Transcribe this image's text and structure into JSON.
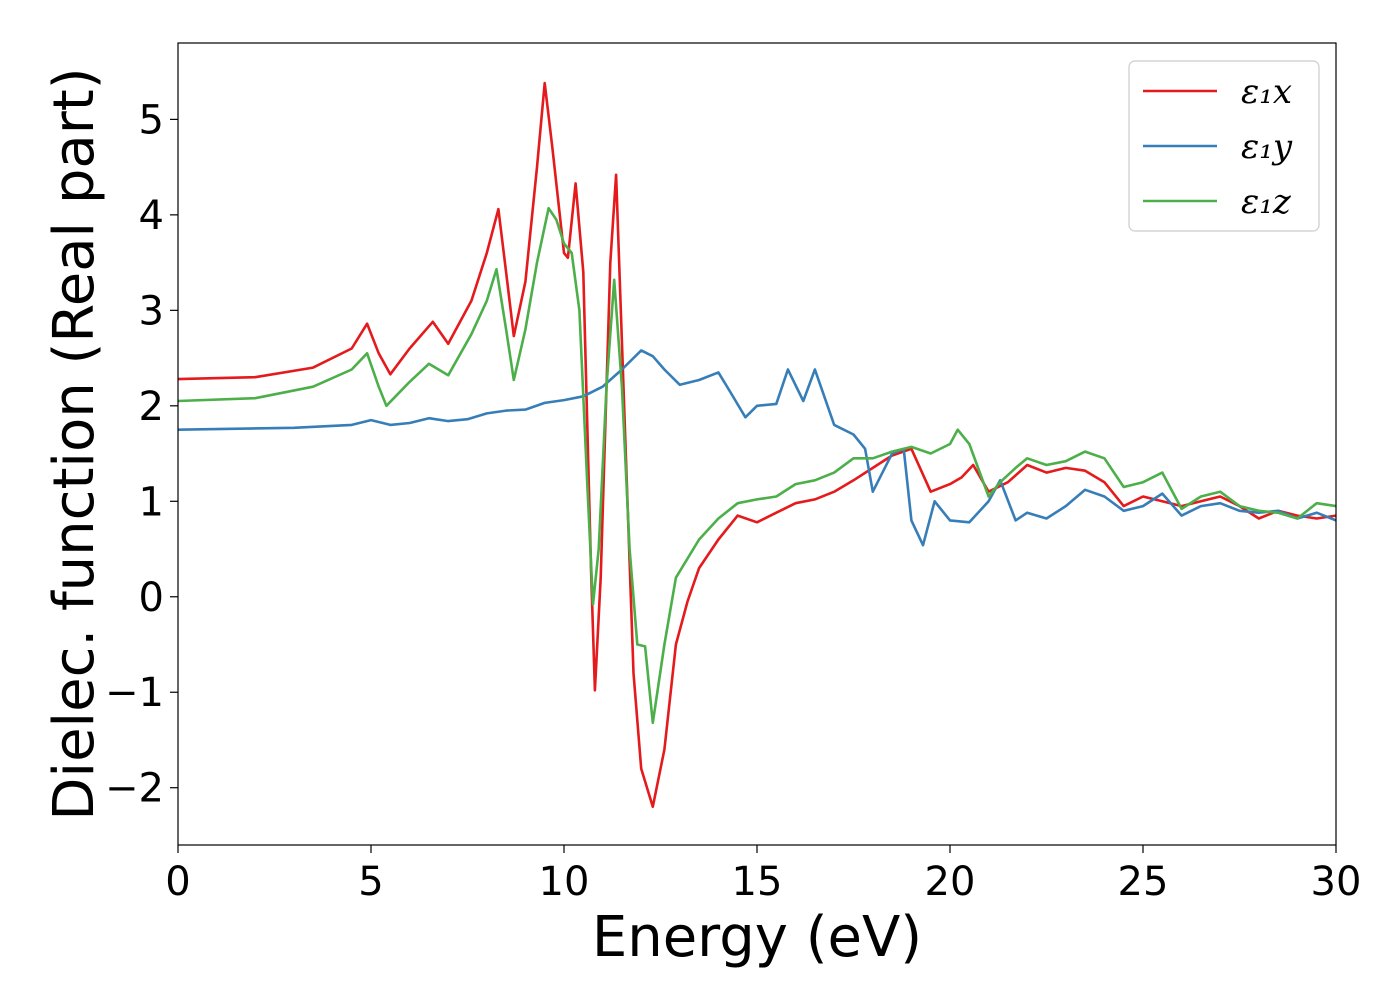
{
  "chart_data": {
    "type": "line",
    "title": "",
    "xlabel": "Energy (eV)",
    "ylabel": "Dielec. function (Real part)",
    "xlim": [
      0,
      30
    ],
    "ylim": [
      -2.6,
      5.8
    ],
    "xticks": [
      0,
      5,
      10,
      15,
      20,
      25,
      30
    ],
    "xtick_labels": [
      "0",
      "5",
      "10",
      "15",
      "20",
      "25",
      "30"
    ],
    "yticks": [
      -2,
      -1,
      0,
      1,
      2,
      3,
      4,
      5
    ],
    "ytick_labels": [
      "−2",
      "−1",
      "0",
      "1",
      "2",
      "3",
      "4",
      "5"
    ],
    "grid": false,
    "legend_position": "top-right",
    "series": [
      {
        "name": "ε₁x",
        "color": "#e41a1c",
        "points": [
          [
            0,
            2.28
          ],
          [
            2,
            2.3
          ],
          [
            3.5,
            2.4
          ],
          [
            4.5,
            2.6
          ],
          [
            4.9,
            2.86
          ],
          [
            5.2,
            2.55
          ],
          [
            5.5,
            2.33
          ],
          [
            6,
            2.6
          ],
          [
            6.6,
            2.88
          ],
          [
            7,
            2.65
          ],
          [
            7.6,
            3.1
          ],
          [
            8,
            3.6
          ],
          [
            8.3,
            4.06
          ],
          [
            8.5,
            3.4
          ],
          [
            8.7,
            2.73
          ],
          [
            9,
            3.3
          ],
          [
            9.3,
            4.5
          ],
          [
            9.5,
            5.38
          ],
          [
            9.7,
            4.7
          ],
          [
            10,
            3.6
          ],
          [
            10.1,
            3.55
          ],
          [
            10.3,
            4.33
          ],
          [
            10.5,
            3.4
          ],
          [
            10.7,
            0.3
          ],
          [
            10.8,
            -0.98
          ],
          [
            10.95,
            0.2
          ],
          [
            11.2,
            3.5
          ],
          [
            11.35,
            4.42
          ],
          [
            11.6,
            1.5
          ],
          [
            11.8,
            -0.8
          ],
          [
            12,
            -1.8
          ],
          [
            12.3,
            -2.2
          ],
          [
            12.6,
            -1.6
          ],
          [
            12.9,
            -0.5
          ],
          [
            13.2,
            -0.05
          ],
          [
            13.5,
            0.3
          ],
          [
            14,
            0.6
          ],
          [
            14.5,
            0.85
          ],
          [
            15,
            0.78
          ],
          [
            15.5,
            0.88
          ],
          [
            16,
            0.98
          ],
          [
            16.5,
            1.02
          ],
          [
            17,
            1.1
          ],
          [
            17.5,
            1.22
          ],
          [
            18,
            1.35
          ],
          [
            18.5,
            1.48
          ],
          [
            19,
            1.55
          ],
          [
            19.5,
            1.1
          ],
          [
            20,
            1.18
          ],
          [
            20.3,
            1.25
          ],
          [
            20.6,
            1.38
          ],
          [
            21,
            1.1
          ],
          [
            21.5,
            1.2
          ],
          [
            22,
            1.38
          ],
          [
            22.5,
            1.3
          ],
          [
            23,
            1.35
          ],
          [
            23.5,
            1.32
          ],
          [
            24,
            1.2
          ],
          [
            24.5,
            0.95
          ],
          [
            25,
            1.05
          ],
          [
            25.5,
            1.0
          ],
          [
            26,
            0.95
          ],
          [
            26.5,
            1.0
          ],
          [
            27,
            1.05
          ],
          [
            27.5,
            0.95
          ],
          [
            28,
            0.82
          ],
          [
            28.5,
            0.9
          ],
          [
            29,
            0.85
          ],
          [
            29.5,
            0.82
          ],
          [
            30,
            0.85
          ]
        ]
      },
      {
        "name": "ε₁y",
        "color": "#377eb8",
        "points": [
          [
            0,
            1.75
          ],
          [
            3,
            1.77
          ],
          [
            4.5,
            1.8
          ],
          [
            5,
            1.85
          ],
          [
            5.5,
            1.8
          ],
          [
            6,
            1.82
          ],
          [
            6.5,
            1.87
          ],
          [
            7,
            1.84
          ],
          [
            7.5,
            1.86
          ],
          [
            8,
            1.92
          ],
          [
            8.5,
            1.95
          ],
          [
            9,
            1.96
          ],
          [
            9.5,
            2.03
          ],
          [
            10,
            2.06
          ],
          [
            10.5,
            2.1
          ],
          [
            11,
            2.2
          ],
          [
            11.5,
            2.38
          ],
          [
            12,
            2.58
          ],
          [
            12.3,
            2.52
          ],
          [
            12.6,
            2.38
          ],
          [
            13,
            2.22
          ],
          [
            13.5,
            2.27
          ],
          [
            14,
            2.35
          ],
          [
            14.3,
            2.15
          ],
          [
            14.7,
            1.88
          ],
          [
            15,
            2.0
          ],
          [
            15.5,
            2.02
          ],
          [
            15.8,
            2.38
          ],
          [
            16.2,
            2.05
          ],
          [
            16.5,
            2.38
          ],
          [
            17,
            1.8
          ],
          [
            17.5,
            1.7
          ],
          [
            17.8,
            1.55
          ],
          [
            18,
            1.1
          ],
          [
            18.5,
            1.5
          ],
          [
            18.8,
            1.55
          ],
          [
            19,
            0.8
          ],
          [
            19.3,
            0.54
          ],
          [
            19.6,
            1.0
          ],
          [
            20,
            0.8
          ],
          [
            20.5,
            0.78
          ],
          [
            21,
            1.0
          ],
          [
            21.3,
            1.22
          ],
          [
            21.7,
            0.8
          ],
          [
            22,
            0.88
          ],
          [
            22.5,
            0.82
          ],
          [
            23,
            0.95
          ],
          [
            23.5,
            1.12
          ],
          [
            24,
            1.05
          ],
          [
            24.5,
            0.9
          ],
          [
            25,
            0.95
          ],
          [
            25.5,
            1.08
          ],
          [
            26,
            0.85
          ],
          [
            26.5,
            0.95
          ],
          [
            27,
            0.98
          ],
          [
            27.5,
            0.9
          ],
          [
            28,
            0.88
          ],
          [
            28.5,
            0.9
          ],
          [
            29,
            0.82
          ],
          [
            29.5,
            0.88
          ],
          [
            30,
            0.8
          ]
        ]
      },
      {
        "name": "ε₁z",
        "color": "#4daf4a",
        "points": [
          [
            0,
            2.05
          ],
          [
            2,
            2.08
          ],
          [
            3.5,
            2.2
          ],
          [
            4.5,
            2.38
          ],
          [
            4.9,
            2.55
          ],
          [
            5.2,
            2.2
          ],
          [
            5.4,
            2.0
          ],
          [
            6,
            2.25
          ],
          [
            6.5,
            2.44
          ],
          [
            7,
            2.32
          ],
          [
            7.6,
            2.75
          ],
          [
            8,
            3.1
          ],
          [
            8.25,
            3.43
          ],
          [
            8.5,
            2.8
          ],
          [
            8.7,
            2.27
          ],
          [
            9,
            2.8
          ],
          [
            9.3,
            3.5
          ],
          [
            9.6,
            4.07
          ],
          [
            9.8,
            3.95
          ],
          [
            10,
            3.7
          ],
          [
            10.2,
            3.6
          ],
          [
            10.4,
            3.0
          ],
          [
            10.6,
            1.2
          ],
          [
            10.75,
            -0.08
          ],
          [
            10.9,
            0.5
          ],
          [
            11.1,
            2.2
          ],
          [
            11.3,
            3.32
          ],
          [
            11.5,
            2.2
          ],
          [
            11.7,
            0.5
          ],
          [
            11.9,
            -0.5
          ],
          [
            12.1,
            -0.52
          ],
          [
            12.3,
            -1.32
          ],
          [
            12.6,
            -0.5
          ],
          [
            12.9,
            0.2
          ],
          [
            13.5,
            0.6
          ],
          [
            14,
            0.82
          ],
          [
            14.5,
            0.98
          ],
          [
            15,
            1.02
          ],
          [
            15.5,
            1.05
          ],
          [
            16,
            1.18
          ],
          [
            16.5,
            1.22
          ],
          [
            17,
            1.3
          ],
          [
            17.5,
            1.45
          ],
          [
            18,
            1.45
          ],
          [
            18.5,
            1.52
          ],
          [
            19,
            1.57
          ],
          [
            19.5,
            1.5
          ],
          [
            20,
            1.6
          ],
          [
            20.2,
            1.75
          ],
          [
            20.5,
            1.6
          ],
          [
            21,
            1.05
          ],
          [
            21.3,
            1.2
          ],
          [
            21.7,
            1.35
          ],
          [
            22,
            1.45
          ],
          [
            22.5,
            1.38
          ],
          [
            23,
            1.42
          ],
          [
            23.5,
            1.52
          ],
          [
            24,
            1.45
          ],
          [
            24.5,
            1.15
          ],
          [
            25,
            1.2
          ],
          [
            25.5,
            1.3
          ],
          [
            26,
            0.92
          ],
          [
            26.5,
            1.05
          ],
          [
            27,
            1.1
          ],
          [
            27.5,
            0.95
          ],
          [
            28,
            0.9
          ],
          [
            28.5,
            0.88
          ],
          [
            29,
            0.82
          ],
          [
            29.5,
            0.98
          ],
          [
            30,
            0.95
          ]
        ]
      }
    ]
  }
}
